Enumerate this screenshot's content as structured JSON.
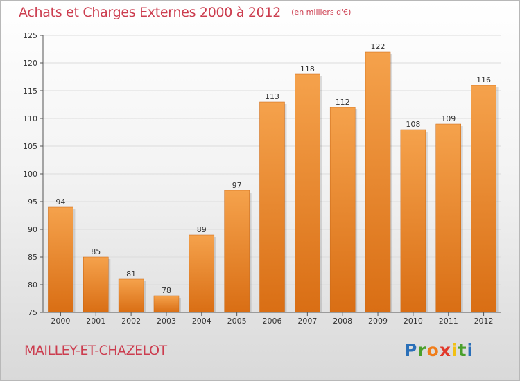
{
  "header": {
    "title": "Achats et Charges Externes 2000 à 2012",
    "unit": "(en milliers d'€)"
  },
  "footer": {
    "commune": "MAILLEY-ET-CHAZELOT",
    "logo_letters": [
      {
        "char": "P",
        "color": "#2a6fb8"
      },
      {
        "char": "r",
        "color": "#4aa02c"
      },
      {
        "char": "o",
        "color": "#f07d1a"
      },
      {
        "char": "x",
        "color": "#e2382a"
      },
      {
        "char": "i",
        "color": "#f2c012"
      },
      {
        "char": "t",
        "color": "#4aa02c"
      },
      {
        "char": "i",
        "color": "#2a6fb8"
      }
    ]
  },
  "chart_data": {
    "type": "bar",
    "categories": [
      "2000",
      "2001",
      "2002",
      "2003",
      "2004",
      "2005",
      "2006",
      "2007",
      "2008",
      "2009",
      "2010",
      "2011",
      "2012"
    ],
    "values": [
      94,
      85,
      81,
      78,
      89,
      97,
      113,
      118,
      112,
      122,
      108,
      109,
      116
    ],
    "ylim": [
      75,
      125
    ],
    "yticks": [
      75,
      80,
      85,
      90,
      95,
      100,
      105,
      110,
      115,
      120,
      125
    ],
    "grid": true,
    "bar_color_top": "#f5a24c",
    "bar_color_bottom": "#d96e14",
    "grid_color": "#dcdcdc"
  }
}
